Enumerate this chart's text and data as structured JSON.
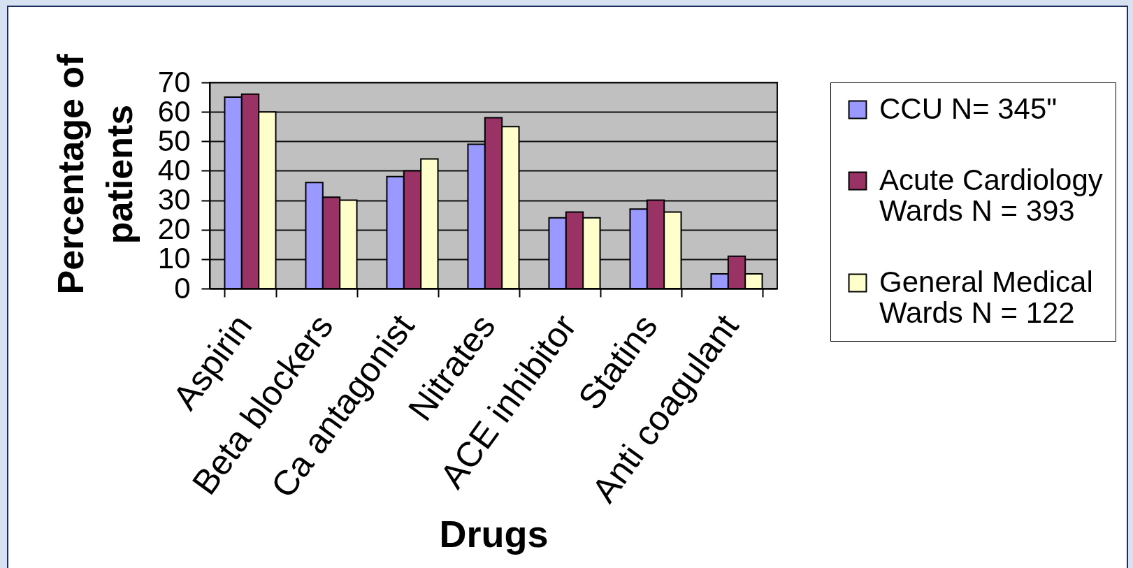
{
  "chart_data": {
    "type": "bar",
    "xlabel": "Drugs",
    "ylabel": "Percentage of patients",
    "categories": [
      "Aspirin",
      "Beta blockers",
      "Ca antagonist",
      "Nitrates",
      "ACE inhibitor",
      "Statins",
      "Anti coagulant"
    ],
    "series": [
      {
        "name": "CCU N= 345\"",
        "color": "#9999ff",
        "values": [
          65,
          36,
          38,
          49,
          24,
          27,
          5
        ]
      },
      {
        "name": "Acute Cardiology Wards N = 393",
        "color": "#993366",
        "values": [
          66,
          31,
          40,
          58,
          26,
          30,
          11
        ]
      },
      {
        "name": "General Medical Wards N = 122",
        "color": "#ffffcc",
        "values": [
          60,
          30,
          44,
          55,
          24,
          26,
          5
        ]
      }
    ],
    "ylim": [
      0,
      70
    ],
    "yticks": [
      0,
      10,
      20,
      30,
      40,
      50,
      60,
      70
    ],
    "grid": "y",
    "legend": "right"
  }
}
